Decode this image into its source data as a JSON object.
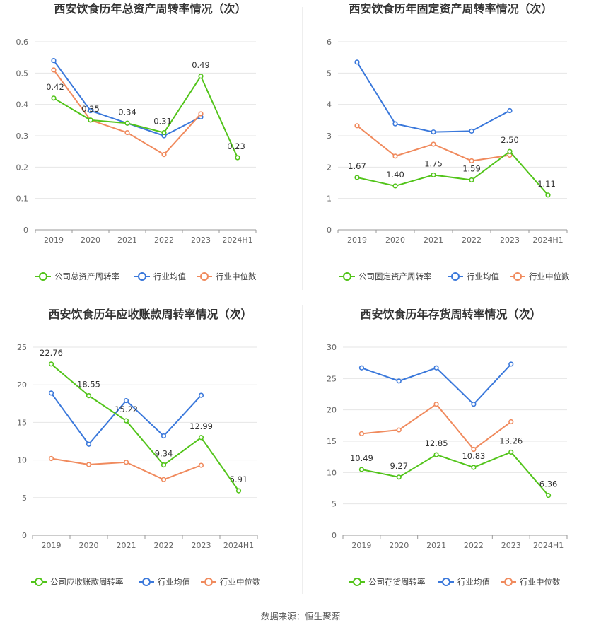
{
  "source_label": "数据来源：恒生聚源",
  "colors": {
    "company": "#52c41a",
    "avg": "#3a78db",
    "median": "#f08a5d"
  },
  "chart_data": [
    {
      "type": "line",
      "title": "西安饮食历年总资产周转率情况（次）",
      "x": [
        "2019",
        "2020",
        "2021",
        "2022",
        "2023",
        "2024H1"
      ],
      "ylim": [
        0,
        0.6
      ],
      "yticks": [
        "0",
        "0.1",
        "0.2",
        "0.3",
        "0.4",
        "0.5",
        "0.6"
      ],
      "grid": true,
      "legend": "bottom",
      "series": [
        {
          "name": "公司总资产周转率",
          "key": "company",
          "values": [
            0.42,
            0.35,
            0.34,
            0.31,
            0.49,
            0.23
          ],
          "labels": [
            "0.42",
            "0.35",
            "0.34",
            "0.31",
            "0.49",
            "0.23"
          ]
        },
        {
          "name": "行业均值",
          "key": "avg",
          "values": [
            0.54,
            0.38,
            0.34,
            0.3,
            0.36,
            null
          ]
        },
        {
          "name": "行业中位数",
          "key": "median",
          "values": [
            0.51,
            0.35,
            0.31,
            0.24,
            0.37,
            null
          ]
        }
      ]
    },
    {
      "type": "line",
      "title": "西安饮食历年固定资产周转率情况（次）",
      "x": [
        "2019",
        "2020",
        "2021",
        "2022",
        "2023",
        "2024H1"
      ],
      "ylim": [
        0,
        6
      ],
      "yticks": [
        "0",
        "1",
        "2",
        "3",
        "4",
        "5",
        "6"
      ],
      "grid": true,
      "legend": "bottom",
      "series": [
        {
          "name": "公司固定资产周转率",
          "key": "company",
          "values": [
            1.67,
            1.4,
            1.75,
            1.59,
            2.5,
            1.11
          ],
          "labels": [
            "1.67",
            "1.40",
            "1.75",
            "1.59",
            "2.50",
            "1.11"
          ]
        },
        {
          "name": "行业均值",
          "key": "avg",
          "values": [
            5.35,
            3.38,
            3.12,
            3.15,
            3.8,
            null
          ]
        },
        {
          "name": "行业中位数",
          "key": "median",
          "values": [
            3.32,
            2.35,
            2.73,
            2.2,
            2.38,
            null
          ]
        }
      ]
    },
    {
      "type": "line",
      "title": "西安饮食历年应收账款周转率情况（次）",
      "x": [
        "2019",
        "2020",
        "2021",
        "2022",
        "2023",
        "2024H1"
      ],
      "ylim": [
        0,
        25
      ],
      "yticks": [
        "0",
        "5",
        "10",
        "15",
        "20",
        "25"
      ],
      "grid": true,
      "legend": "bottom",
      "series": [
        {
          "name": "公司应收账款周转率",
          "key": "company",
          "values": [
            22.76,
            18.55,
            15.22,
            9.34,
            12.99,
            5.91
          ],
          "labels": [
            "22.76",
            "18.55",
            "15.22",
            "9.34",
            "12.99",
            "5.91"
          ]
        },
        {
          "name": "行业均值",
          "key": "avg",
          "values": [
            18.9,
            12.1,
            17.9,
            13.2,
            18.6,
            null
          ]
        },
        {
          "name": "行业中位数",
          "key": "median",
          "values": [
            10.2,
            9.4,
            9.7,
            7.4,
            9.3,
            null
          ]
        }
      ]
    },
    {
      "type": "line",
      "title": "西安饮食历年存货周转率情况（次）",
      "x": [
        "2019",
        "2020",
        "2021",
        "2022",
        "2023",
        "2024H1"
      ],
      "ylim": [
        0,
        30
      ],
      "yticks": [
        "0",
        "5",
        "10",
        "15",
        "20",
        "25",
        "30"
      ],
      "grid": true,
      "legend": "bottom",
      "series": [
        {
          "name": "公司存货周转率",
          "key": "company",
          "values": [
            10.49,
            9.27,
            12.85,
            10.83,
            13.26,
            6.36
          ],
          "labels": [
            "10.49",
            "9.27",
            "12.85",
            "10.83",
            "13.26",
            "6.36"
          ]
        },
        {
          "name": "行业均值",
          "key": "avg",
          "values": [
            26.7,
            24.6,
            26.7,
            20.9,
            27.3,
            null
          ]
        },
        {
          "name": "行业中位数",
          "key": "median",
          "values": [
            16.2,
            16.8,
            20.9,
            13.7,
            18.1,
            null
          ]
        }
      ]
    }
  ]
}
